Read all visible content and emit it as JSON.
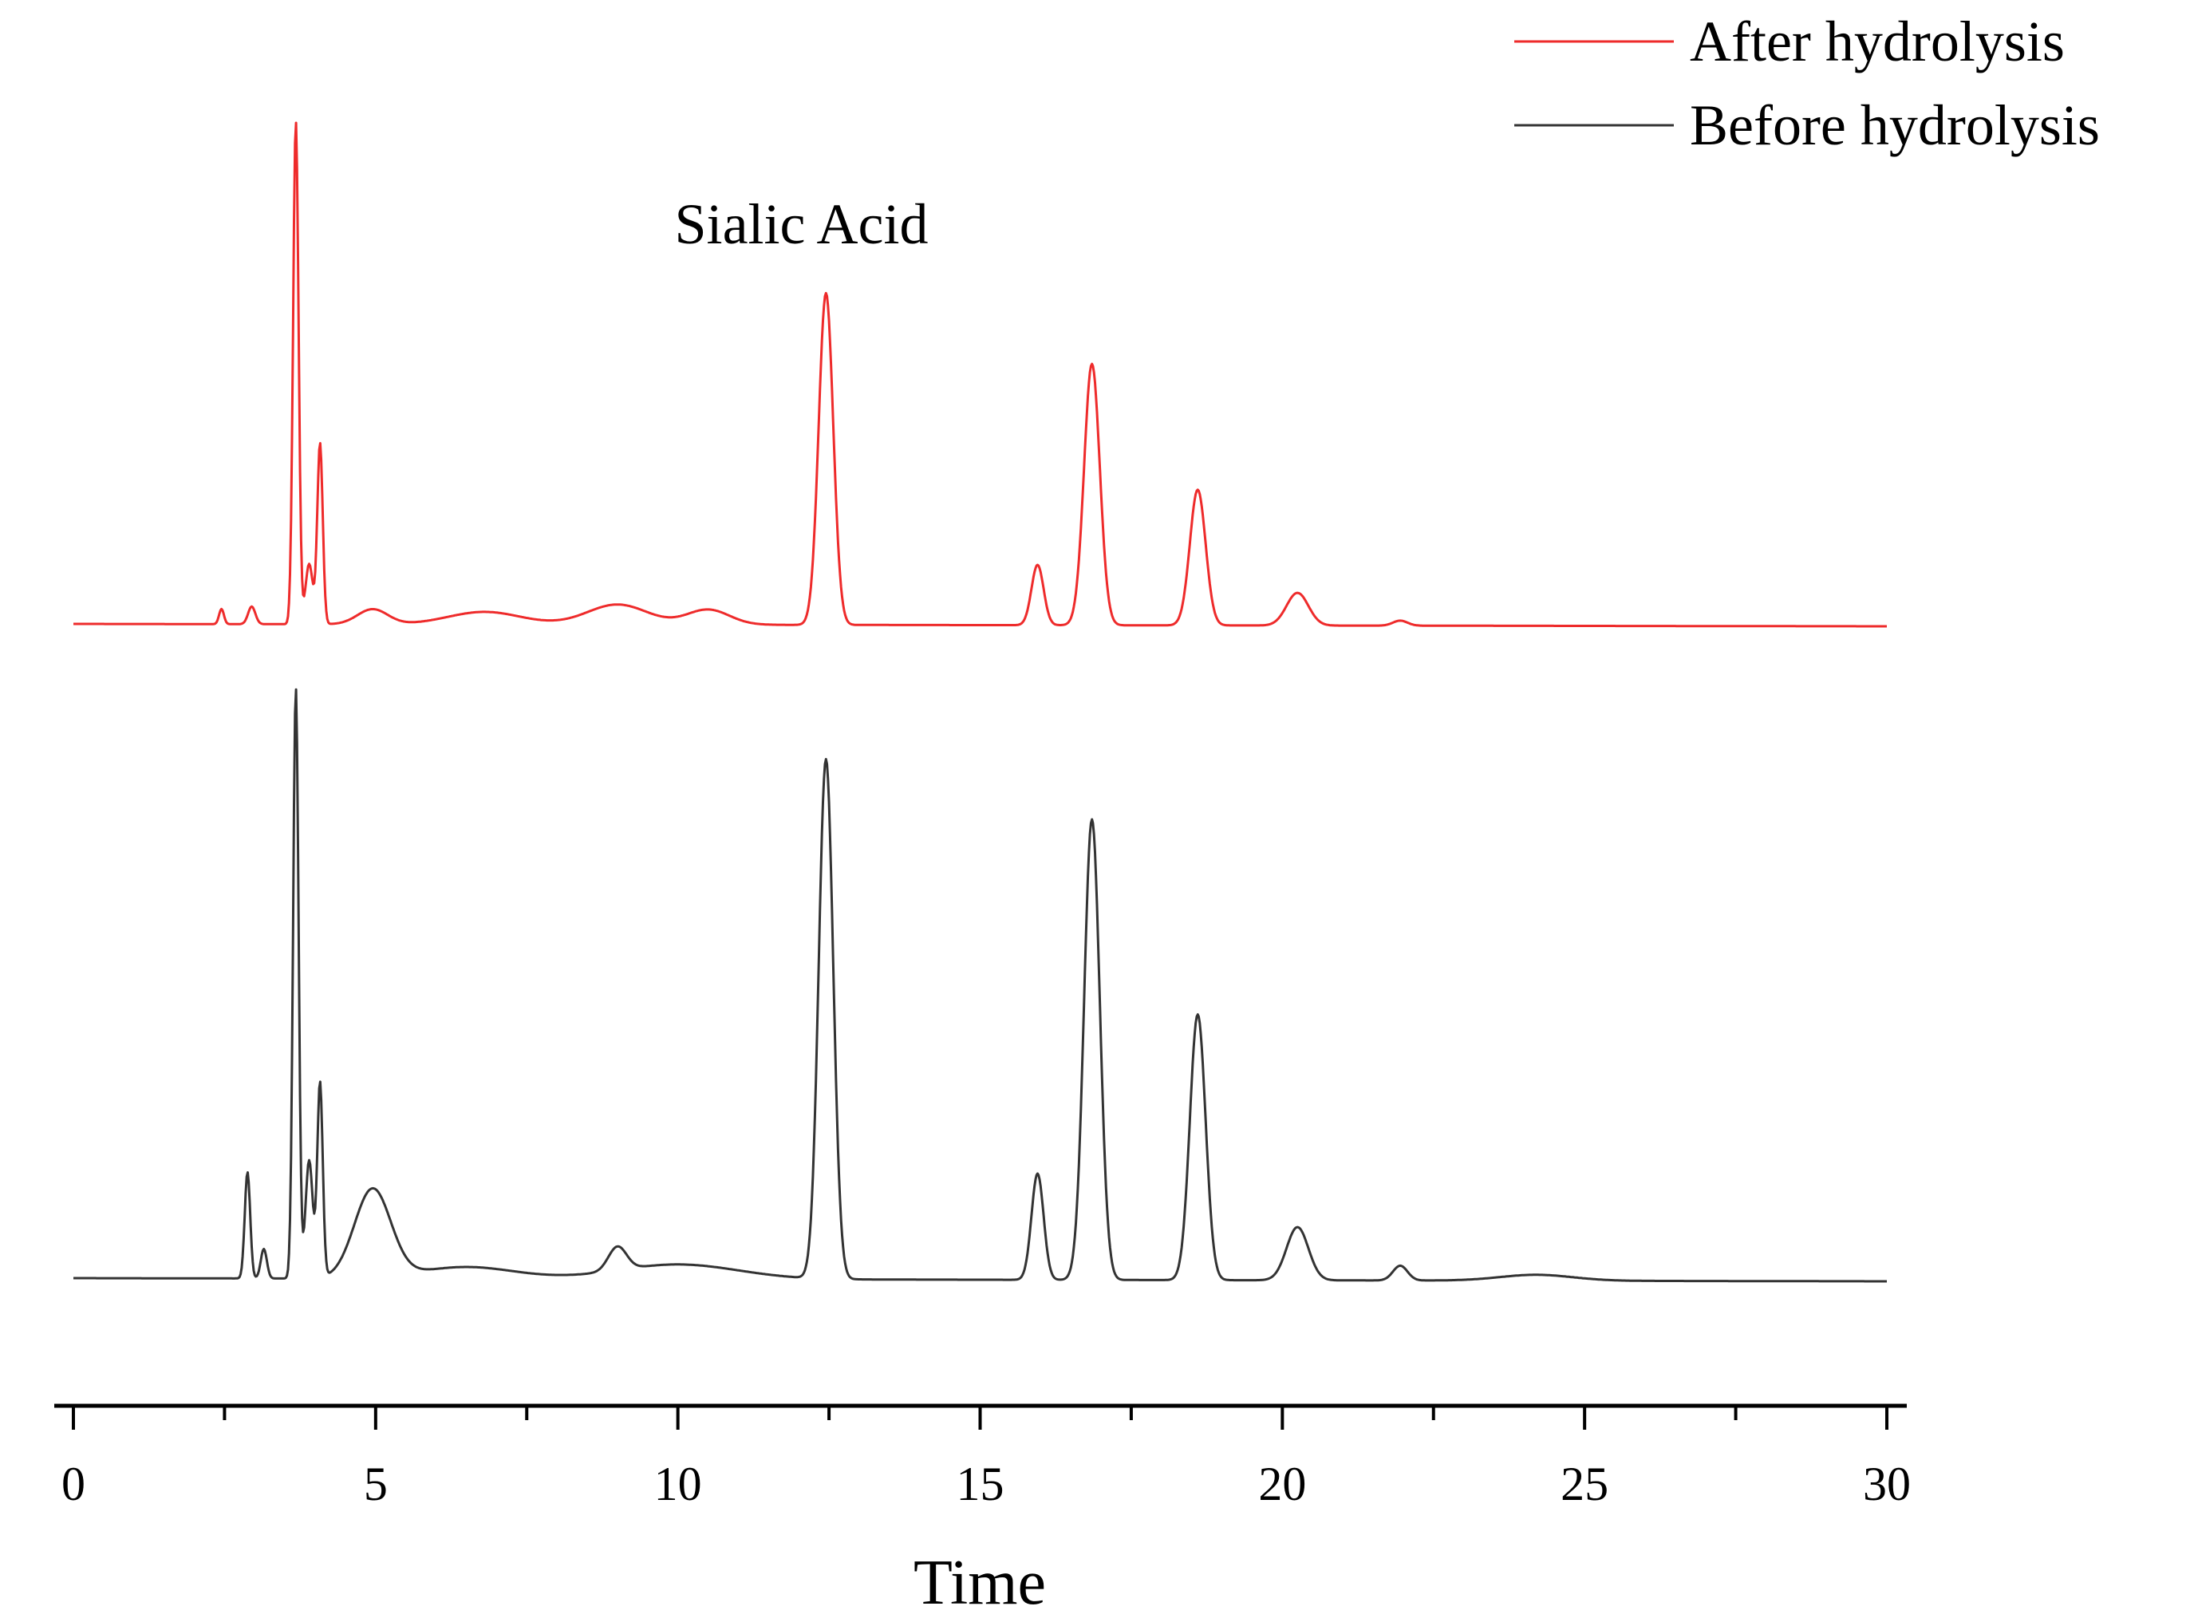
{
  "chart_data": {
    "type": "line",
    "title": "",
    "xlabel": "Time",
    "ylabel": "",
    "xlim": [
      0,
      30
    ],
    "x_ticks": [
      0,
      5,
      10,
      15,
      20,
      25,
      30
    ],
    "x_tick_labels": [
      "0",
      "5",
      "10",
      "15",
      "20",
      "25",
      "30"
    ],
    "grid": false,
    "legend_position": "top-right",
    "annotation": {
      "text": "Sialic Acid",
      "x": 12.4
    },
    "series": [
      {
        "name": "After hydrolysis",
        "color": "#ee2b2b",
        "baseline": 0,
        "peaks": [
          {
            "x": 2.45,
            "height": 0.03,
            "width": 0.04
          },
          {
            "x": 2.95,
            "height": 0.035,
            "width": 0.06
          },
          {
            "x": 3.68,
            "height": 1.0,
            "width": 0.045
          },
          {
            "x": 3.9,
            "height": 0.12,
            "width": 0.06
          },
          {
            "x": 4.08,
            "height": 0.36,
            "width": 0.045
          },
          {
            "x": 4.95,
            "height": 0.03,
            "width": 0.25
          },
          {
            "x": 6.8,
            "height": 0.025,
            "width": 0.6
          },
          {
            "x": 9.0,
            "height": 0.04,
            "width": 0.5
          },
          {
            "x": 10.5,
            "height": 0.03,
            "width": 0.35
          },
          {
            "x": 12.45,
            "height": 0.66,
            "width": 0.12
          },
          {
            "x": 15.95,
            "height": 0.12,
            "width": 0.1
          },
          {
            "x": 16.85,
            "height": 0.52,
            "width": 0.13
          },
          {
            "x": 18.6,
            "height": 0.27,
            "width": 0.13
          },
          {
            "x": 20.25,
            "height": 0.065,
            "width": 0.18
          },
          {
            "x": 21.95,
            "height": 0.01,
            "width": 0.12
          }
        ]
      },
      {
        "name": "Before hydrolysis",
        "color": "#333333",
        "baseline": 0,
        "peaks": [
          {
            "x": 2.88,
            "height": 0.18,
            "width": 0.045
          },
          {
            "x": 3.15,
            "height": 0.05,
            "width": 0.05
          },
          {
            "x": 3.68,
            "height": 1.0,
            "width": 0.045
          },
          {
            "x": 3.9,
            "height": 0.2,
            "width": 0.06
          },
          {
            "x": 4.08,
            "height": 0.33,
            "width": 0.045
          },
          {
            "x": 4.95,
            "height": 0.15,
            "width": 0.3
          },
          {
            "x": 6.5,
            "height": 0.02,
            "width": 0.8
          },
          {
            "x": 9.0,
            "height": 0.04,
            "width": 0.15
          },
          {
            "x": 10.0,
            "height": 0.025,
            "width": 1.0
          },
          {
            "x": 12.45,
            "height": 0.88,
            "width": 0.12
          },
          {
            "x": 15.95,
            "height": 0.18,
            "width": 0.1
          },
          {
            "x": 16.85,
            "height": 0.78,
            "width": 0.13
          },
          {
            "x": 18.6,
            "height": 0.45,
            "width": 0.13
          },
          {
            "x": 20.25,
            "height": 0.09,
            "width": 0.18
          },
          {
            "x": 21.95,
            "height": 0.025,
            "width": 0.12
          },
          {
            "x": 24.2,
            "height": 0.01,
            "width": 0.6
          }
        ]
      }
    ]
  }
}
